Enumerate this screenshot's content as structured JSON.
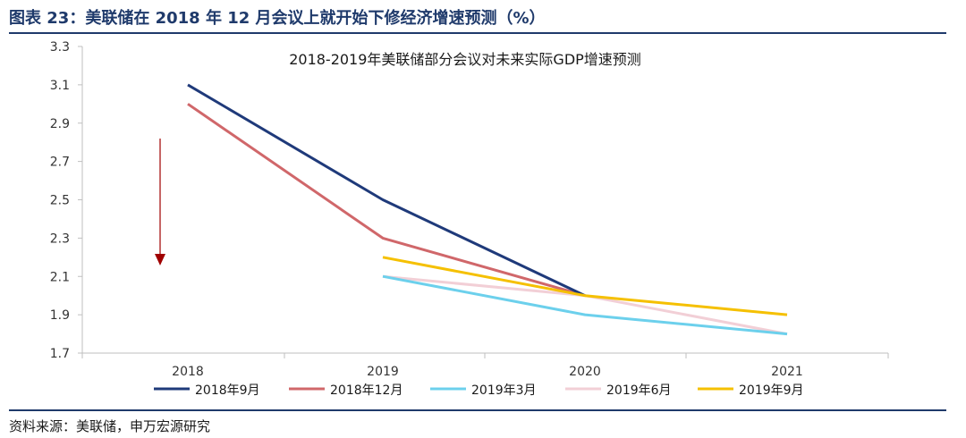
{
  "figure_title": "图表 23：美联储在 2018 年 12 月会议上就开始下修经济增速预测（%）",
  "source": "资料来源：美联储，申万宏源研究",
  "chart_data": {
    "type": "line",
    "title": "2018-2019年美联储部分会议对未来实际GDP增速预测",
    "xlabel": "",
    "ylabel": "",
    "categories": [
      "2018",
      "2019",
      "2020",
      "2021"
    ],
    "ylim": [
      1.7,
      3.3
    ],
    "yticks": [
      "1.7",
      "1.9",
      "2.1",
      "2.3",
      "2.5",
      "2.7",
      "2.9",
      "3.1",
      "3.3"
    ],
    "grid": false,
    "legend_position": "bottom",
    "series": [
      {
        "name": "2018年9月",
        "color": "#1f3a7a",
        "values": [
          3.1,
          2.5,
          2.0,
          null
        ]
      },
      {
        "name": "2018年12月",
        "color": "#d0676a",
        "values": [
          3.0,
          2.3,
          2.0,
          null
        ]
      },
      {
        "name": "2019年3月",
        "color": "#6cd0ec",
        "values": [
          null,
          2.1,
          1.9,
          1.8
        ]
      },
      {
        "name": "2019年6月",
        "color": "#f2cfd6",
        "values": [
          null,
          2.1,
          2.0,
          1.8
        ]
      },
      {
        "name": "2019年9月",
        "color": "#f5c000",
        "values": [
          null,
          2.2,
          2.0,
          1.9
        ]
      }
    ],
    "annotation": {
      "type": "down-arrow",
      "color": "#a00000"
    }
  }
}
